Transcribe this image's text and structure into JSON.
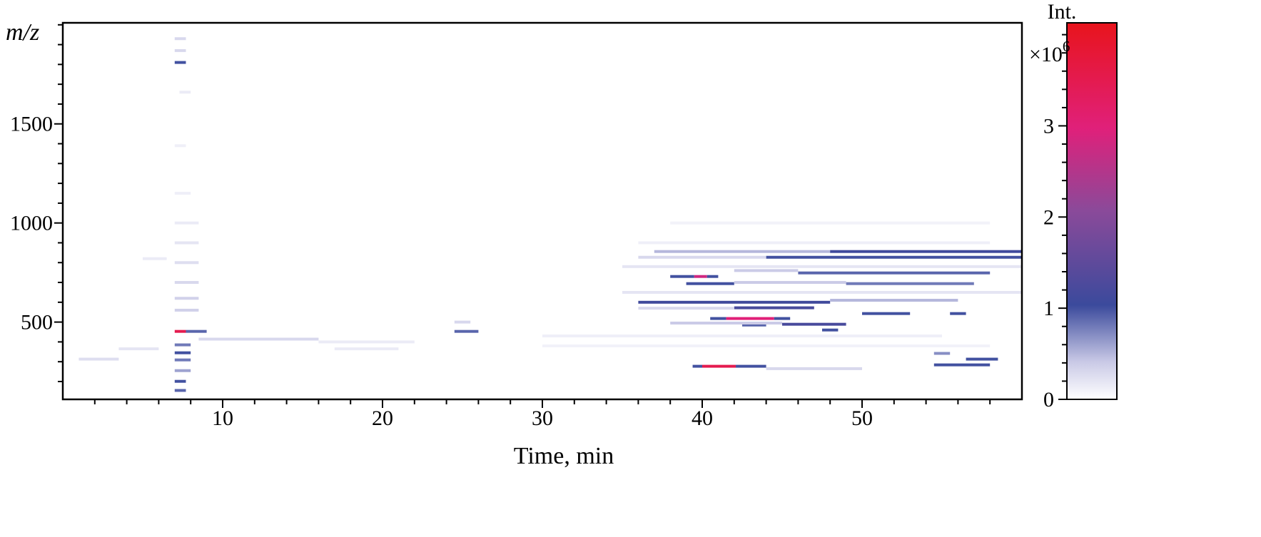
{
  "chart_data": {
    "type": "heatmap",
    "title": "",
    "xlabel": "Time, min",
    "ylabel": "m/z",
    "xlim": [
      0,
      60
    ],
    "ylim": [
      110,
      2010
    ],
    "xticks": [
      10,
      20,
      30,
      40,
      50
    ],
    "yticks": [
      500,
      1000,
      1500
    ],
    "x_minor_step": 2,
    "y_minor_step": 100,
    "grid": false,
    "colorbar": {
      "label": "Int.",
      "multiplier": "×10",
      "multiplier_exp": "6",
      "range": [
        0,
        4.13
      ],
      "ticks": [
        0,
        1,
        2,
        3
      ],
      "minor_step": 0.2,
      "colors": [
        "#ffffff",
        "#c9c9e6",
        "#3b4a9c",
        "#8a4a9a",
        "#e0207a",
        "#e8141c"
      ],
      "stops": [
        0,
        0.1,
        0.25,
        0.5,
        0.72,
        1
      ]
    },
    "streaks_columns": [
      "t_start_min",
      "t_end_min",
      "mz",
      "intensity_1e6"
    ],
    "streaks": [
      [
        7.0,
        7.7,
        1930,
        0.3
      ],
      [
        7.0,
        7.7,
        1870,
        0.3
      ],
      [
        7.0,
        7.7,
        1810,
        1.0
      ],
      [
        7.3,
        8.0,
        1660,
        0.15
      ],
      [
        7.0,
        7.7,
        1390,
        0.12
      ],
      [
        7.0,
        8.0,
        1150,
        0.12
      ],
      [
        7.0,
        8.5,
        1000,
        0.15
      ],
      [
        7.0,
        8.5,
        900,
        0.2
      ],
      [
        7.0,
        8.5,
        800,
        0.25
      ],
      [
        7.0,
        8.5,
        700,
        0.3
      ],
      [
        7.0,
        8.5,
        620,
        0.35
      ],
      [
        7.0,
        8.5,
        560,
        0.35
      ],
      [
        7.0,
        7.7,
        453,
        3.5
      ],
      [
        7.7,
        9.0,
        453,
        0.9
      ],
      [
        7.0,
        8.0,
        385,
        0.8
      ],
      [
        7.0,
        8.0,
        345,
        1.0
      ],
      [
        7.0,
        8.0,
        309,
        0.8
      ],
      [
        7.0,
        8.0,
        255,
        0.6
      ],
      [
        7.0,
        7.7,
        201,
        1.0
      ],
      [
        7.0,
        7.7,
        155,
        0.9
      ],
      [
        1.0,
        3.5,
        313,
        0.25
      ],
      [
        3.5,
        6.0,
        365,
        0.2
      ],
      [
        5.0,
        6.5,
        820,
        0.15
      ],
      [
        8.5,
        16.0,
        414,
        0.3
      ],
      [
        16.0,
        22.0,
        400,
        0.15
      ],
      [
        17.0,
        21.0,
        365,
        0.15
      ],
      [
        24.5,
        26.0,
        453,
        0.9
      ],
      [
        24.5,
        25.5,
        500,
        0.3
      ],
      [
        37.0,
        48.0,
        856,
        0.5
      ],
      [
        48.0,
        60.0,
        856,
        1.1
      ],
      [
        44.0,
        60.0,
        827,
        1.0
      ],
      [
        36.0,
        44.0,
        827,
        0.3
      ],
      [
        38.0,
        39.5,
        730,
        1.0
      ],
      [
        39.5,
        40.3,
        730,
        2.8
      ],
      [
        40.3,
        41.0,
        730,
        1.0
      ],
      [
        46.0,
        58.0,
        748,
        0.9
      ],
      [
        42.0,
        46.0,
        760,
        0.4
      ],
      [
        39.0,
        42.0,
        694,
        1.0
      ],
      [
        49.0,
        57.0,
        694,
        0.8
      ],
      [
        42.0,
        49.0,
        700,
        0.4
      ],
      [
        36.0,
        48.0,
        600,
        1.1
      ],
      [
        48.0,
        56.0,
        610,
        0.5
      ],
      [
        42.0,
        47.0,
        572,
        1.2
      ],
      [
        36.0,
        42.0,
        570,
        0.3
      ],
      [
        50.0,
        53.0,
        543,
        1.0
      ],
      [
        55.5,
        56.5,
        543,
        1.0
      ],
      [
        40.5,
        41.5,
        518,
        1.0
      ],
      [
        41.5,
        44.5,
        518,
        3.0
      ],
      [
        44.5,
        45.5,
        518,
        1.0
      ],
      [
        45.0,
        49.0,
        489,
        1.2
      ],
      [
        42.5,
        44.0,
        485,
        0.9
      ],
      [
        38.0,
        45.0,
        495,
        0.4
      ],
      [
        47.5,
        48.5,
        460,
        1.0
      ],
      [
        39.4,
        40.0,
        277,
        1.0
      ],
      [
        40.0,
        42.1,
        277,
        3.5
      ],
      [
        42.1,
        44.0,
        277,
        1.0
      ],
      [
        44.0,
        50.0,
        265,
        0.3
      ],
      [
        54.5,
        58.0,
        284,
        1.0
      ],
      [
        56.5,
        58.5,
        313,
        1.0
      ],
      [
        54.5,
        55.5,
        342,
        0.7
      ],
      [
        35.0,
        60.0,
        650,
        0.2
      ],
      [
        35.0,
        60.0,
        780,
        0.2
      ],
      [
        36.0,
        58.0,
        900,
        0.12
      ],
      [
        38.0,
        58.0,
        1000,
        0.1
      ],
      [
        30.0,
        55.0,
        430,
        0.12
      ],
      [
        30.0,
        58.0,
        380,
        0.1
      ]
    ]
  }
}
